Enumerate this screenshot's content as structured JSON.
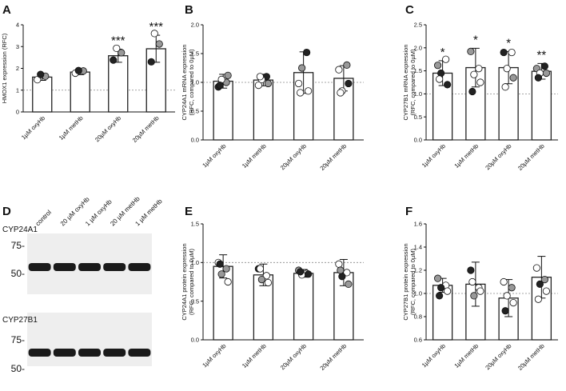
{
  "colors": {
    "bar_fill": "#ffffff",
    "bar_stroke": "#222222",
    "dot_white": "#ffffff",
    "dot_grey": "#999999",
    "dot_black": "#222222",
    "reference_line": "#888888"
  },
  "chart_data": [
    {
      "panel": "A",
      "type": "bar",
      "categories": [
        "1µM oxyHb",
        "1µM metHb",
        "20µM oxyHb",
        "20µM metHb"
      ],
      "values": [
        1.6,
        1.83,
        2.58,
        2.9
      ],
      "errors": [
        0.15,
        0.12,
        0.3,
        0.62
      ],
      "points": [
        [
          1.48,
          1.64,
          1.72
        ],
        [
          1.78,
          1.88,
          1.9
        ],
        [
          2.38,
          2.72,
          2.92
        ],
        [
          2.3,
          3.12,
          3.6
        ]
      ],
      "point_colors": [
        [
          "white",
          "grey",
          "black"
        ],
        [
          "white",
          "grey",
          "black"
        ],
        [
          "black",
          "grey",
          "white"
        ],
        [
          "black",
          "grey",
          "white"
        ]
      ],
      "significance": [
        "",
        "",
        "***",
        "***"
      ],
      "ylabel": "HMOX1 expression (RFC)",
      "ylim": [
        0,
        4
      ],
      "yticks": [
        "0",
        "1",
        "2",
        "3",
        "4"
      ],
      "reference_line": 1
    },
    {
      "panel": "B",
      "type": "bar",
      "categories": [
        "1µM oxyHb",
        "1µM metHb",
        "20µM oxyHb",
        "20µM metHb"
      ],
      "values": [
        1.02,
        1.04,
        1.17,
        1.07
      ],
      "errors": [
        0.12,
        0.1,
        0.36,
        0.22
      ],
      "points": [
        [
          0.92,
          1.0,
          1.05,
          1.12,
          0.95
        ],
        [
          0.95,
          1.1,
          1.05,
          0.98,
          1.1
        ],
        [
          0.98,
          1.52,
          1.25,
          0.85,
          0.82
        ],
        [
          1.22,
          1.3,
          0.85,
          0.98,
          0.82
        ]
      ],
      "point_colors": [
        [
          "black",
          "grey",
          "white",
          "grey",
          "black"
        ],
        [
          "white",
          "black",
          "white",
          "grey",
          "white"
        ],
        [
          "white",
          "black",
          "grey",
          "white",
          "white"
        ],
        [
          "white",
          "grey",
          "white",
          "black",
          "white"
        ]
      ],
      "significance": [
        "",
        "",
        "",
        ""
      ],
      "ylabel": "CYP24A1 mRNA expression (RFC, compared to 0µM)",
      "ylim": [
        0,
        2
      ],
      "yticks": [
        "0.0",
        "0.5",
        "1.0",
        "1.5",
        "2.0"
      ],
      "reference_line": 1
    },
    {
      "panel": "C",
      "type": "bar",
      "categories": [
        "1µM oxyHb",
        "1µM metHb",
        "20µM oxyHb",
        "20µM metHb"
      ],
      "values": [
        1.45,
        1.57,
        1.57,
        1.49
      ],
      "errors": [
        0.27,
        0.42,
        0.35,
        0.17
      ],
      "points": [
        [
          1.62,
          1.75,
          1.45,
          1.2,
          1.32
        ],
        [
          1.92,
          1.55,
          1.42,
          1.25,
          1.05
        ],
        [
          1.9,
          1.9,
          1.55,
          1.35,
          1.15
        ],
        [
          1.55,
          1.6,
          1.45,
          1.45,
          1.35
        ]
      ],
      "point_colors": [
        [
          "grey",
          "white",
          "black",
          "black",
          "white"
        ],
        [
          "grey",
          "white",
          "white",
          "white",
          "black"
        ],
        [
          "black",
          "white",
          "white",
          "grey",
          "white"
        ],
        [
          "grey",
          "black",
          "white",
          "grey",
          "black"
        ]
      ],
      "significance": [
        "*",
        "*",
        "*",
        "**"
      ],
      "ylabel": "CYP27B1 mRNA expression (RFC, compared to 0µM)",
      "ylim": [
        0,
        2.5
      ],
      "yticks": [
        "0.0",
        "0.5",
        "1.0",
        "1.5",
        "2.0",
        "2.5"
      ],
      "reference_line": 1
    },
    {
      "panel": "E",
      "type": "bar",
      "categories": [
        "1µM oxyHb",
        "1µM metHb",
        "20µM oxyHb",
        "20µM metHb"
      ],
      "values": [
        0.95,
        0.84,
        0.86,
        0.87
      ],
      "errors": [
        0.15,
        0.14,
        0.05,
        0.17
      ],
      "points": [
        [
          1.0,
          0.92,
          0.85,
          0.75,
          0.98
        ],
        [
          0.92,
          0.83,
          0.78,
          0.74,
          0.92
        ],
        [
          0.9,
          0.86,
          0.84,
          0.85,
          0.88
        ],
        [
          0.98,
          0.87,
          0.82,
          0.72,
          0.9
        ]
      ],
      "point_colors": [
        [
          "white",
          "grey",
          "grey",
          "white",
          "black"
        ],
        [
          "black",
          "white",
          "grey",
          "white",
          "white"
        ],
        [
          "grey",
          "white",
          "white",
          "black",
          "black"
        ],
        [
          "white",
          "white",
          "black",
          "grey",
          "grey"
        ]
      ],
      "significance": [
        "",
        "",
        "",
        ""
      ],
      "ylabel": "CYP24A1 protein expression (RFC, compared to 0µM)",
      "ylim": [
        0,
        1.5
      ],
      "yticks": [
        "0.0",
        "0.5",
        "1.0",
        "1.5"
      ],
      "reference_line": 1
    },
    {
      "panel": "F",
      "type": "bar",
      "categories": [
        "1µM oxyHb",
        "1µM metHb",
        "20µM oxyHb",
        "20µM metHb"
      ],
      "values": [
        1.07,
        1.08,
        0.96,
        1.14
      ],
      "errors": [
        0.06,
        0.19,
        0.16,
        0.18
      ],
      "points": [
        [
          1.13,
          1.07,
          1.05,
          1.02,
          0.98
        ],
        [
          1.2,
          1.05,
          0.98,
          1.02,
          1.1
        ],
        [
          1.1,
          1.05,
          0.98,
          0.92,
          0.85
        ],
        [
          1.22,
          1.12,
          1.08,
          1.02,
          0.95
        ]
      ],
      "point_colors": [
        [
          "grey",
          "white",
          "black",
          "white",
          "black"
        ],
        [
          "black",
          "white",
          "grey",
          "white",
          "white"
        ],
        [
          "white",
          "grey",
          "white",
          "white",
          "black"
        ],
        [
          "white",
          "grey",
          "black",
          "white",
          "white"
        ]
      ],
      "significance": [
        "",
        "",
        "",
        ""
      ],
      "ylabel": "CYP27B1 protein expression (RFC, compared to 0µM)",
      "ylim": [
        0.6,
        1.6
      ],
      "yticks": [
        "0.6",
        "0.8",
        "1.0",
        "1.2",
        "1.4",
        "1.6"
      ],
      "reference_line": 1
    }
  ],
  "blot": {
    "panel": "D",
    "lanes": [
      "control",
      "20 µM oxyHb",
      "1 µM oxyHb",
      "20 µM metHb",
      "1 µM metHb"
    ],
    "blots": [
      {
        "label": "CYP24A1",
        "markers": [
          "75-",
          "50-"
        ]
      },
      {
        "label": "CYP27B1",
        "markers": [
          "75-",
          "50-"
        ]
      }
    ]
  }
}
